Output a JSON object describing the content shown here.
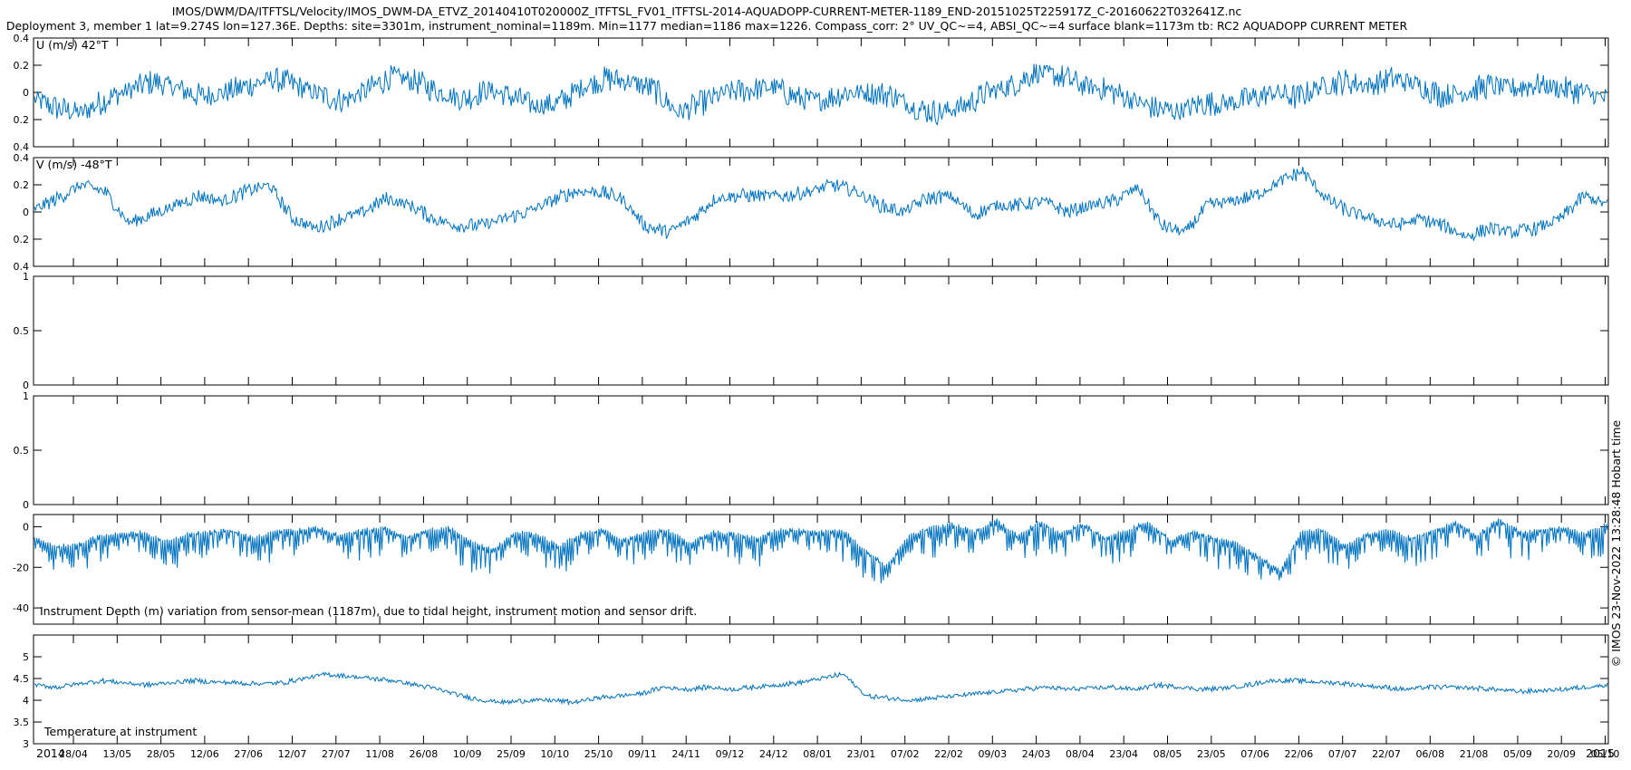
{
  "title_line1": "IMOS/DWM/DA/ITFTSL/Velocity/IMOS_DWM-DA_ETVZ_20140410T020000Z_ITFTSL_FV01_ITFTSL-2014-AQUADOPP-CURRENT-METER-1189_END-20151025T225917Z_C-20160622T032641Z.nc",
  "title_line2": "Deployment 3, member 1 lat=9.274S lon=127.36E. Depths: site=3301m, instrument_nominal=1189m. Min=1177 median=1186 max=1226. Compass_corr: 2° UV_QC~=4, ABSI_QC~=4 surface blank=1173m tb: RC2 AQUADOPP CURRENT METER",
  "side_stamp": "© IMOS 23-Nov-2022 13:28:48 Hobart time",
  "colors": {
    "series": "#0072BD",
    "axis": "#000000"
  },
  "x_axis": {
    "tick_labels": [
      "28/04",
      "13/05",
      "28/05",
      "12/06",
      "27/06",
      "12/07",
      "27/07",
      "11/08",
      "26/08",
      "10/09",
      "25/09",
      "10/10",
      "25/10",
      "09/11",
      "24/11",
      "09/12",
      "24/12",
      "08/01",
      "23/01",
      "07/02",
      "22/02",
      "09/03",
      "24/03",
      "08/04",
      "23/04",
      "08/05",
      "23/05",
      "07/06",
      "22/06",
      "07/07",
      "22/07",
      "06/08",
      "21/08",
      "05/09",
      "20/09",
      "05/10"
    ],
    "year_labels": [
      "2014",
      "2015"
    ]
  },
  "chart_data": [
    {
      "type": "line",
      "panel_label": "U (m/s) 42°T",
      "ylim": [
        -0.4,
        0.4
      ],
      "y_tick_labels": [
        "0.4",
        "0.2",
        "0",
        "0.2",
        "0.4"
      ],
      "series": [
        {
          "values": [
            -0.05,
            -0.12,
            -0.15,
            -0.05,
            0.02,
            0.08,
            0.03,
            -0.03,
            0.0,
            0.05,
            0.1,
            0.05,
            -0.02,
            -0.06,
            0.02,
            0.12,
            0.08,
            0.0,
            -0.05,
            0.02,
            -0.03,
            -0.1,
            -0.08,
            0.04,
            0.1,
            0.08,
            0.02,
            -0.15,
            -0.08,
            0.0,
            0.02,
            0.04,
            -0.04,
            -0.06,
            0.0,
            0.0,
            -0.02,
            -0.12,
            -0.15,
            -0.1,
            0.0,
            0.05,
            0.15,
            0.12,
            0.05,
            0.02,
            -0.05,
            -0.12,
            -0.14,
            -0.08,
            -0.08,
            -0.05,
            0.0,
            -0.04,
            0.05,
            0.08,
            0.05,
            0.1,
            0.06,
            -0.02,
            0.0,
            0.05,
            0.03,
            0.06,
            0.03,
            0.0,
            -0.05
          ]
        }
      ]
    },
    {
      "type": "line",
      "panel_label": "V (m/s) -48°T",
      "ylim": [
        -0.4,
        0.4
      ],
      "y_tick_labels": [
        "0.4",
        "0.2",
        "0",
        "0.2",
        "0.4"
      ],
      "series": [
        {
          "values": [
            0.02,
            0.1,
            0.2,
            0.15,
            -0.08,
            -0.02,
            0.05,
            0.12,
            0.08,
            0.15,
            0.2,
            -0.05,
            -0.12,
            -0.05,
            0.0,
            0.1,
            0.05,
            -0.05,
            -0.1,
            -0.1,
            -0.05,
            0.0,
            0.08,
            0.15,
            0.15,
            0.1,
            -0.1,
            -0.15,
            -0.05,
            0.1,
            0.12,
            0.12,
            0.12,
            0.15,
            0.2,
            0.15,
            0.05,
            0.0,
            0.1,
            0.12,
            -0.02,
            0.05,
            0.05,
            0.08,
            0.0,
            0.05,
            0.08,
            0.18,
            -0.1,
            -0.15,
            0.05,
            0.08,
            0.12,
            0.22,
            0.3,
            0.1,
            0.0,
            -0.05,
            -0.1,
            -0.05,
            -0.1,
            -0.18,
            -0.12,
            -0.15,
            -0.12,
            -0.05,
            0.12,
            0.05
          ]
        }
      ]
    },
    {
      "type": "line",
      "ylim": [
        0,
        1
      ],
      "y_tick_labels": [
        "1",
        "0.5",
        "0"
      ],
      "series": []
    },
    {
      "type": "line",
      "ylim": [
        0,
        1
      ],
      "y_tick_labels": [
        "1",
        "0.5",
        "0"
      ],
      "series": []
    },
    {
      "type": "line",
      "panel_label": "Instrument Depth (m) variation from sensor-mean (1187m), due to tidal height, instrument motion and sensor drift.",
      "ylim": [
        -48,
        6
      ],
      "y_tick_labels": [
        "0",
        "-20",
        "-40"
      ],
      "series": [
        {
          "values": [
            -6,
            -10,
            -9,
            -5,
            -4,
            -3,
            -8,
            -4,
            -3,
            -2,
            -6,
            -3,
            -2,
            -1,
            -5,
            -2,
            -1,
            -6,
            -2,
            -1,
            -8,
            -12,
            -3,
            -4,
            -10,
            -4,
            -2,
            -7,
            -3,
            -2,
            -9,
            -3,
            -4,
            -6,
            -2,
            -2,
            -3,
            -2,
            -12,
            -20,
            -5,
            -1,
            1,
            -3,
            3,
            -5,
            2,
            -4,
            1,
            -6,
            -2,
            2,
            -7,
            -3,
            -6,
            -8,
            -15,
            -22,
            -3,
            -2,
            -10,
            -4,
            -2,
            -6,
            -3,
            2,
            -5,
            3,
            -3,
            -2,
            -1,
            -4,
            1
          ]
        }
      ]
    },
    {
      "type": "line",
      "panel_label": "Temperature at instrument",
      "ylim": [
        3,
        5.5
      ],
      "y_tick_labels": [
        "5",
        "4.5",
        "4",
        "3.5",
        "3"
      ],
      "series": [
        {
          "values": [
            4.35,
            4.3,
            4.38,
            4.45,
            4.4,
            4.35,
            4.4,
            4.45,
            4.42,
            4.4,
            4.38,
            4.4,
            4.5,
            4.6,
            4.55,
            4.5,
            4.45,
            4.35,
            4.25,
            4.1,
            4.0,
            3.95,
            4.0,
            4.0,
            3.95,
            4.05,
            4.1,
            4.15,
            4.3,
            4.25,
            4.3,
            4.25,
            4.3,
            4.35,
            4.4,
            4.5,
            4.6,
            4.1,
            4.05,
            4.0,
            4.05,
            4.1,
            4.15,
            4.2,
            4.25,
            4.3,
            4.25,
            4.28,
            4.3,
            4.25,
            4.35,
            4.3,
            4.25,
            4.28,
            4.35,
            4.45,
            4.45,
            4.42,
            4.4,
            4.35,
            4.3,
            4.25,
            4.3,
            4.3,
            4.28,
            4.25,
            4.2,
            4.22,
            4.25,
            4.3,
            4.35
          ]
        }
      ]
    }
  ]
}
